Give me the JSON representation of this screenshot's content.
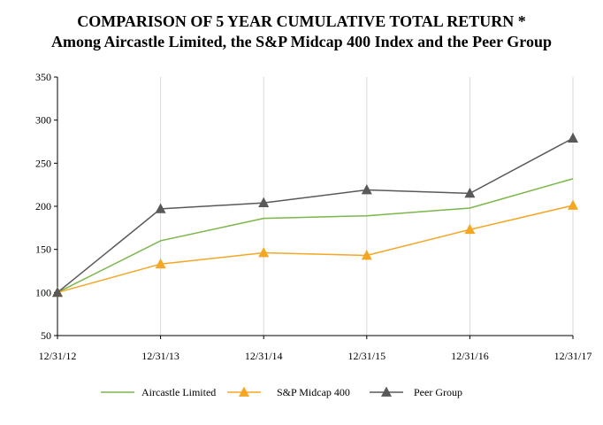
{
  "chart_data": {
    "type": "line",
    "title": "COMPARISON OF 5 YEAR CUMULATIVE TOTAL RETURN *",
    "subtitle": "Among Aircastle Limited, the S&P Midcap 400 Index and the Peer Group",
    "xlabel": "",
    "ylabel": "",
    "categories": [
      "12/31/12",
      "12/31/13",
      "12/31/14",
      "12/31/15",
      "12/31/16",
      "12/31/17"
    ],
    "ylim": [
      50,
      350
    ],
    "yticks": [
      50,
      100,
      150,
      200,
      250,
      300,
      350
    ],
    "grid": "vertical",
    "legend_position": "bottom",
    "series": [
      {
        "name": "Aircastle Limited",
        "color": "#7ab648",
        "marker": "none",
        "values": [
          100,
          160,
          186,
          189,
          198,
          232
        ]
      },
      {
        "name": "S&P Midcap 400",
        "color": "#f5a623",
        "marker": "triangle",
        "values": [
          100,
          133,
          146,
          143,
          173,
          201
        ]
      },
      {
        "name": "Peer Group",
        "color": "#595959",
        "marker": "triangle",
        "values": [
          100,
          197,
          204,
          219,
          215,
          279
        ]
      }
    ]
  }
}
